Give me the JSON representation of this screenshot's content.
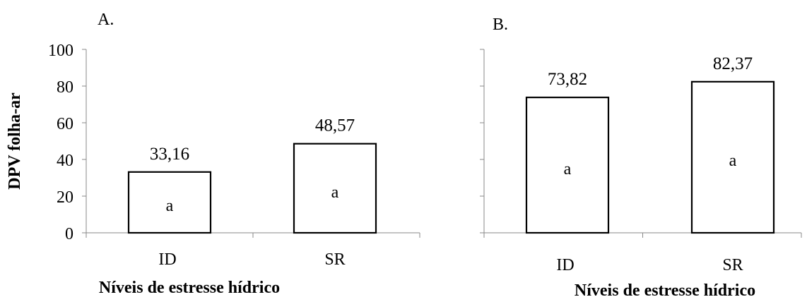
{
  "chart_data": [
    {
      "type": "bar",
      "panel_label": "A.",
      "categories": [
        "ID",
        "SR"
      ],
      "values": [
        33.16,
        48.57
      ],
      "value_labels": [
        "33,16",
        "48,57"
      ],
      "group_letters": [
        "a",
        "a"
      ],
      "ylabel": "DPV folha-ar",
      "xlabel": "Níveis de estresse hídrico",
      "ylim": [
        0,
        100
      ],
      "yticks": [
        0,
        20,
        40,
        60,
        80,
        100
      ],
      "ytick_labels": [
        "0",
        "20",
        "40",
        "60",
        "80",
        "100"
      ],
      "grid": false,
      "bar_fill": "#ffffff",
      "bar_stroke": "#000000"
    },
    {
      "type": "bar",
      "panel_label": "B.",
      "categories": [
        "ID",
        "SR"
      ],
      "values": [
        73.82,
        82.37
      ],
      "value_labels": [
        "73,82",
        "82,37"
      ],
      "group_letters": [
        "a",
        "a"
      ],
      "xlabel": "Níveis de estresse hídrico",
      "ylim": [
        0,
        100
      ],
      "yticks": [
        0,
        20,
        40,
        60,
        80,
        100
      ],
      "grid": false,
      "bar_fill": "#ffffff",
      "bar_stroke": "#000000"
    }
  ]
}
